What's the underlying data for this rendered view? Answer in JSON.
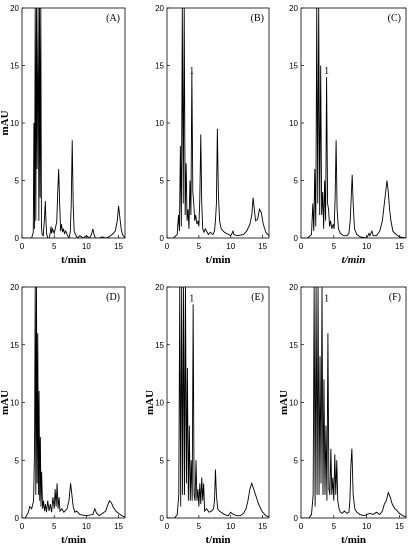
{
  "chart_data": [
    {
      "type": "line",
      "panel_label": "(A)",
      "xlabel": "t/min",
      "ylabel": "mAU",
      "xlim": [
        0,
        16
      ],
      "ylim": [
        0,
        20
      ],
      "xticks": [
        0,
        5,
        10,
        15
      ],
      "yticks": [
        0,
        5,
        10,
        15,
        20
      ],
      "peak_labels": [],
      "series": [
        {
          "x": [
            0,
            1.5,
            1.75,
            1.85,
            1.95,
            2.05,
            2.15,
            2.25,
            2.35,
            2.5,
            2.62,
            2.72,
            2.82,
            2.92,
            3.02,
            3.12,
            3.3,
            3.5,
            3.62,
            3.72,
            3.82,
            4.0,
            4.25,
            4.4,
            4.5,
            4.6,
            4.75,
            5.0,
            5.4,
            5.55,
            5.7,
            5.85,
            6.0,
            6.15,
            6.3,
            6.45,
            6.6,
            6.8,
            7.0,
            7.3,
            7.5,
            7.65,
            7.8,
            7.95,
            8.1,
            8.3,
            8.6,
            9.0,
            9.5,
            10.0,
            10.5,
            10.8,
            11.0,
            11.2,
            11.4,
            12.0,
            12.5,
            13.0,
            13.5,
            14.0,
            14.5,
            14.8,
            15.0,
            15.2,
            15.4,
            15.6,
            16.0
          ],
          "y": [
            0,
            0,
            0.5,
            10,
            0.8,
            20,
            1.5,
            20,
            6,
            20,
            1.5,
            20,
            3.5,
            20,
            1,
            0.3,
            0.2,
            1.8,
            3.2,
            1.5,
            0.4,
            0,
            0,
            0.5,
            1,
            0.4,
            0.8,
            0.4,
            1.4,
            4,
            6,
            3,
            0.6,
            1.2,
            0.5,
            0.8,
            0.4,
            0.6,
            0.3,
            0,
            0.5,
            3,
            8.5,
            3,
            0.6,
            0.3,
            0,
            0.2,
            0,
            0.2,
            0,
            0.3,
            0.8,
            0.3,
            0,
            0,
            0.1,
            0,
            0.1,
            0.3,
            0.6,
            1.5,
            2.8,
            1.8,
            0.8,
            0.3,
            0
          ]
        }
      ]
    },
    {
      "type": "line",
      "panel_label": "(B)",
      "xlabel": "t/min",
      "ylabel": "",
      "xlim": [
        0,
        16
      ],
      "ylim": [
        0,
        20
      ],
      "xticks": [
        0,
        5,
        10,
        15
      ],
      "yticks": [
        0,
        5,
        10,
        15,
        20
      ],
      "peak_labels": [
        {
          "text": "1",
          "x": 4.2,
          "y": 14
        }
      ],
      "series": [
        {
          "x": [
            0,
            1,
            1.6,
            1.8,
            1.95,
            2.1,
            2.25,
            2.4,
            2.55,
            2.7,
            2.85,
            3.0,
            3.15,
            3.3,
            3.45,
            3.6,
            3.75,
            3.9,
            4.05,
            4.2,
            4.35,
            4.5,
            4.7,
            4.9,
            5.0,
            5.15,
            5.3,
            5.45,
            5.6,
            5.8,
            6.0,
            6.3,
            6.5,
            6.8,
            7.0,
            7.2,
            7.45,
            7.6,
            7.75,
            7.9,
            8.05,
            8.25,
            8.5,
            9.0,
            10.0,
            10.2,
            10.35,
            10.5,
            11.0,
            12.0,
            12.5,
            13.0,
            13.3,
            13.5,
            13.7,
            13.9,
            14.2,
            14.5,
            14.8,
            15.1,
            15.5,
            16.0
          ],
          "y": [
            0,
            0,
            0.3,
            2,
            0.6,
            8,
            1,
            20,
            3,
            20,
            2,
            6.5,
            1.5,
            2.5,
            0.8,
            5,
            2,
            14.5,
            4,
            3,
            1.5,
            2,
            1.2,
            1.5,
            1,
            3.5,
            9,
            3,
            0.8,
            0.5,
            0.8,
            0.5,
            0.3,
            0.5,
            0.4,
            0.3,
            0.6,
            1.5,
            3,
            9.5,
            4,
            1.5,
            0.8,
            0.5,
            0.2,
            0.4,
            0.6,
            0.3,
            0.2,
            0.3,
            0.6,
            1.2,
            2,
            3.5,
            2.5,
            1.5,
            1.6,
            2.5,
            2.2,
            1.2,
            0.5,
            0.2
          ]
        }
      ]
    },
    {
      "type": "line",
      "panel_label": "(C)",
      "xlabel": "t/min",
      "ylabel": "",
      "xlim": [
        0,
        16
      ],
      "ylim": [
        0,
        20
      ],
      "xticks": [
        0,
        5,
        10,
        15
      ],
      "yticks": [
        0,
        5,
        10,
        15,
        20
      ],
      "peak_labels": [
        {
          "text": "1",
          "x": 4.2,
          "y": 14
        }
      ],
      "series": [
        {
          "x": [
            0,
            1,
            1.6,
            1.8,
            1.95,
            2.1,
            2.25,
            2.4,
            2.55,
            2.7,
            2.85,
            3.0,
            3.15,
            3.3,
            3.45,
            3.6,
            3.75,
            3.9,
            4.05,
            4.2,
            4.35,
            4.5,
            4.7,
            4.9,
            5.05,
            5.2,
            5.35,
            5.5,
            5.7,
            6.0,
            6.5,
            7.0,
            7.3,
            7.5,
            7.65,
            7.8,
            7.95,
            8.15,
            8.5,
            9.0,
            10.0,
            10.2,
            10.35,
            10.5,
            10.8,
            11.0,
            11.5,
            12.0,
            12.4,
            12.7,
            12.9,
            13.1,
            13.3,
            13.5,
            13.7,
            14.0,
            14.5,
            15.0,
            16.0
          ],
          "y": [
            0,
            0,
            0.3,
            3,
            0.6,
            6,
            1,
            20,
            3,
            20,
            2,
            15,
            2,
            4,
            0.8,
            5,
            1.5,
            14,
            3,
            2.5,
            1,
            1.5,
            0.8,
            1.2,
            0.8,
            3.5,
            8.5,
            2.5,
            0.8,
            0.4,
            0.2,
            0.2,
            0.4,
            1.5,
            3.5,
            5.5,
            3,
            0.8,
            0.3,
            0.1,
            0,
            0.2,
            0.4,
            0.2,
            0.6,
            0.2,
            0.2,
            0.6,
            1.5,
            3,
            4,
            5,
            4,
            2.5,
            1.5,
            0.6,
            0.3,
            0.1,
            0
          ]
        }
      ]
    },
    {
      "type": "line",
      "panel_label": "(D)",
      "xlabel": "t/min",
      "ylabel": "mAU",
      "xlim": [
        0,
        16
      ],
      "ylim": [
        0,
        20
      ],
      "xticks": [
        0,
        5,
        10,
        15
      ],
      "yticks": [
        0,
        5,
        10,
        15,
        20
      ],
      "peak_labels": [],
      "series": [
        {
          "x": [
            0,
            0.5,
            1.0,
            1.2,
            1.5,
            1.8,
            1.95,
            2.05,
            2.15,
            2.25,
            2.35,
            2.45,
            2.55,
            2.65,
            2.75,
            2.85,
            2.95,
            3.05,
            3.2,
            3.35,
            3.5,
            3.65,
            3.8,
            4.0,
            4.2,
            4.4,
            4.6,
            4.8,
            5.0,
            5.15,
            5.3,
            5.45,
            5.6,
            5.75,
            5.9,
            6.2,
            6.5,
            7.0,
            7.3,
            7.55,
            7.75,
            7.95,
            8.2,
            8.5,
            9.0,
            10.0,
            11.0,
            11.3,
            11.6,
            12.0,
            12.5,
            13.0,
            13.3,
            13.6,
            13.9,
            14.2,
            14.6,
            15.0,
            15.5,
            16.0
          ],
          "y": [
            0,
            0,
            0.5,
            1,
            0.8,
            1.5,
            6,
            20,
            2,
            20,
            3,
            16,
            2,
            11,
            1.5,
            7,
            1,
            4,
            0.8,
            1.5,
            0.6,
            1.2,
            0.5,
            1.5,
            0.6,
            1.2,
            0.5,
            1.8,
            0.8,
            2.5,
            1,
            3,
            0.8,
            1.8,
            0.6,
            0.8,
            0.5,
            0.8,
            1.5,
            3,
            2,
            1,
            0.5,
            0.6,
            0.3,
            0.2,
            0.3,
            0.8,
            0.4,
            0.2,
            0.4,
            0.6,
            1.1,
            1.5,
            1.3,
            0.9,
            0.6,
            0.4,
            0.2,
            0.1
          ]
        }
      ]
    },
    {
      "type": "line",
      "panel_label": "(E)",
      "xlabel": "t/min",
      "ylabel": "mAU",
      "xlim": [
        0,
        16
      ],
      "ylim": [
        0,
        20
      ],
      "xticks": [
        0,
        5,
        10,
        15
      ],
      "yticks": [
        0,
        5,
        10,
        15,
        20
      ],
      "peak_labels": [
        {
          "text": "1",
          "x": 4.2,
          "y": 18.5
        }
      ],
      "series": [
        {
          "x": [
            0,
            1.2,
            1.6,
            1.85,
            2.0,
            2.15,
            2.3,
            2.45,
            2.6,
            2.75,
            2.9,
            3.05,
            3.2,
            3.35,
            3.5,
            3.65,
            3.8,
            3.95,
            4.1,
            4.25,
            4.4,
            4.55,
            4.7,
            4.85,
            5.0,
            5.15,
            5.3,
            5.45,
            5.6,
            5.75,
            5.9,
            6.2,
            6.6,
            7.0,
            7.3,
            7.45,
            7.6,
            7.75,
            7.95,
            8.2,
            8.5,
            9.0,
            9.6,
            10.0,
            10.4,
            11.0,
            11.5,
            12.0,
            12.4,
            12.7,
            13.0,
            13.3,
            13.6,
            13.9,
            14.3,
            14.7,
            15.0,
            15.5,
            16.0
          ],
          "y": [
            0,
            0,
            0.3,
            2,
            20,
            1,
            20,
            2,
            20,
            2,
            20,
            3,
            13,
            1.5,
            8,
            1.5,
            5,
            1.5,
            18.5,
            2,
            1.5,
            5,
            1.5,
            2.5,
            1,
            3,
            1.2,
            3.5,
            1.5,
            3,
            0.6,
            0.8,
            0.5,
            0.6,
            0.8,
            1.5,
            4.2,
            2,
            0.8,
            0.6,
            0.5,
            0.3,
            0.2,
            0.5,
            0.3,
            0.2,
            0.2,
            0.4,
            0.8,
            1.5,
            2.5,
            3,
            2.5,
            2,
            1.3,
            0.8,
            0.5,
            0.2,
            0.1
          ]
        }
      ]
    },
    {
      "type": "line",
      "panel_label": "(F)",
      "xlabel": "t/min",
      "ylabel": "mAU",
      "xlim": [
        0,
        16
      ],
      "ylim": [
        0,
        20
      ],
      "xticks": [
        0,
        5,
        10,
        15
      ],
      "yticks": [
        0,
        5,
        10,
        15,
        20
      ],
      "peak_labels": [
        {
          "text": "1",
          "x": 4.2,
          "y": 18.5
        }
      ],
      "series": [
        {
          "x": [
            0,
            1.2,
            1.6,
            1.85,
            2.0,
            2.15,
            2.3,
            2.45,
            2.6,
            2.75,
            2.9,
            3.05,
            3.2,
            3.35,
            3.5,
            3.65,
            3.8,
            3.95,
            4.1,
            4.25,
            4.4,
            4.55,
            4.7,
            4.85,
            5.0,
            5.15,
            5.3,
            5.45,
            5.6,
            5.8,
            6.0,
            6.3,
            6.6,
            7.0,
            7.3,
            7.45,
            7.6,
            7.75,
            7.95,
            8.2,
            8.5,
            9.0,
            9.6,
            10.0,
            10.5,
            11.0,
            11.5,
            12.0,
            12.4,
            12.7,
            13.0,
            13.3,
            13.6,
            13.9,
            14.3,
            14.7,
            15.0,
            15.5,
            16.0
          ],
          "y": [
            0,
            0,
            0.3,
            2,
            20,
            1,
            20,
            2,
            20,
            2,
            14,
            3,
            20,
            2,
            12,
            2,
            8,
            1.5,
            16,
            2.5,
            2,
            6,
            2,
            3.5,
            1.5,
            5.5,
            2,
            5,
            1.5,
            0.8,
            0.5,
            0.4,
            0.6,
            0.4,
            0.5,
            1.5,
            4.5,
            6,
            2,
            0.8,
            0.5,
            0.3,
            0.2,
            0.3,
            0.4,
            0.3,
            0.5,
            0.3,
            0.6,
            1.2,
            1.5,
            2.2,
            1.8,
            1.2,
            0.8,
            0.6,
            0.4,
            0.2,
            0.1
          ]
        }
      ]
    }
  ]
}
